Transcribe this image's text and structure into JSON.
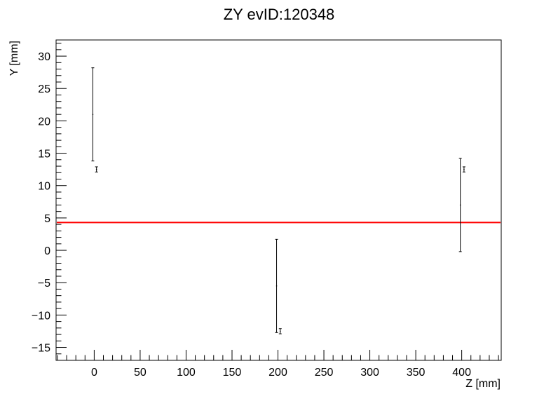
{
  "chart_data": {
    "type": "scatter",
    "title": "ZY evID:120348",
    "xlabel": "Z [mm]",
    "ylabel": "Y [mm]",
    "xlim": [
      -41.5,
      443
    ],
    "ylim": [
      -17,
      32.5
    ],
    "x_ticks": [
      0,
      50,
      100,
      150,
      200,
      250,
      300,
      350,
      400
    ],
    "y_ticks": [
      -15,
      -10,
      -5,
      0,
      5,
      10,
      15,
      20,
      25,
      30
    ],
    "grid": false,
    "series": [
      {
        "points": [
          {
            "x": -1.5,
            "y": 21.0,
            "ylow": 13.8,
            "yhigh": 28.2
          },
          {
            "x": 2.5,
            "y": 12.5,
            "ylow": 12.1,
            "yhigh": 12.9
          },
          {
            "x": 198.5,
            "y": -5.5,
            "ylow": -12.7,
            "yhigh": 1.7
          },
          {
            "x": 202.5,
            "y": -12.5,
            "ylow": -12.9,
            "yhigh": -12.1
          },
          {
            "x": 398.5,
            "y": 7.0,
            "ylow": -0.2,
            "yhigh": 14.2
          },
          {
            "x": 402.5,
            "y": 12.5,
            "ylow": 12.1,
            "yhigh": 12.9
          }
        ]
      }
    ],
    "fit_line": {
      "color": "#ff0000",
      "y": 4.3
    }
  }
}
